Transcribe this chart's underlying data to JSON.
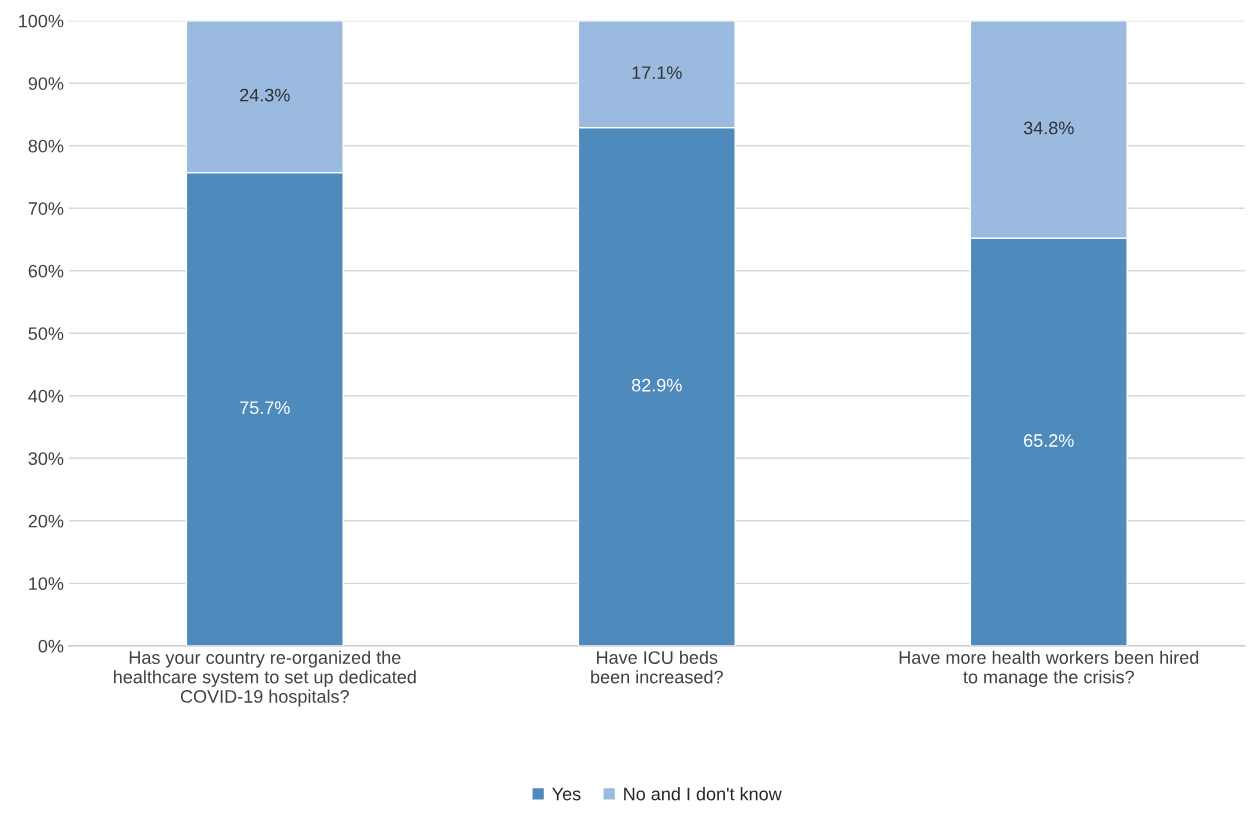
{
  "chart_data": {
    "type": "bar",
    "stacked": true,
    "categories": [
      "Has your country re-organized the\nhealthcare system to set up dedicated\nCOVID-19 hospitals?",
      "Have ICU beds\nbeen increased?",
      "Have more health workers been hired\nto manage the crisis?"
    ],
    "series": [
      {
        "name": "Yes",
        "color": "#4f8abd",
        "values": [
          75.7,
          82.9,
          65.2
        ],
        "value_labels": [
          "75.7%",
          "82.9%",
          "65.2%"
        ]
      },
      {
        "name": "No and I don't know",
        "color": "#9bbae0",
        "values": [
          24.3,
          17.1,
          34.8
        ],
        "value_labels": [
          "24.3%",
          "17.1%",
          "34.8%"
        ]
      }
    ],
    "ylim": [
      0,
      100
    ],
    "yticks": [
      {
        "value": 0,
        "label": "0%"
      },
      {
        "value": 10,
        "label": "10%"
      },
      {
        "value": 20,
        "label": "20%"
      },
      {
        "value": 30,
        "label": "30%"
      },
      {
        "value": 40,
        "label": "40%"
      },
      {
        "value": 50,
        "label": "50%"
      },
      {
        "value": 60,
        "label": "60%"
      },
      {
        "value": 70,
        "label": "70%"
      },
      {
        "value": 80,
        "label": "80%"
      },
      {
        "value": 90,
        "label": "90%"
      },
      {
        "value": 100,
        "label": "100%"
      }
    ],
    "grid": "y",
    "legend": "bottom"
  }
}
